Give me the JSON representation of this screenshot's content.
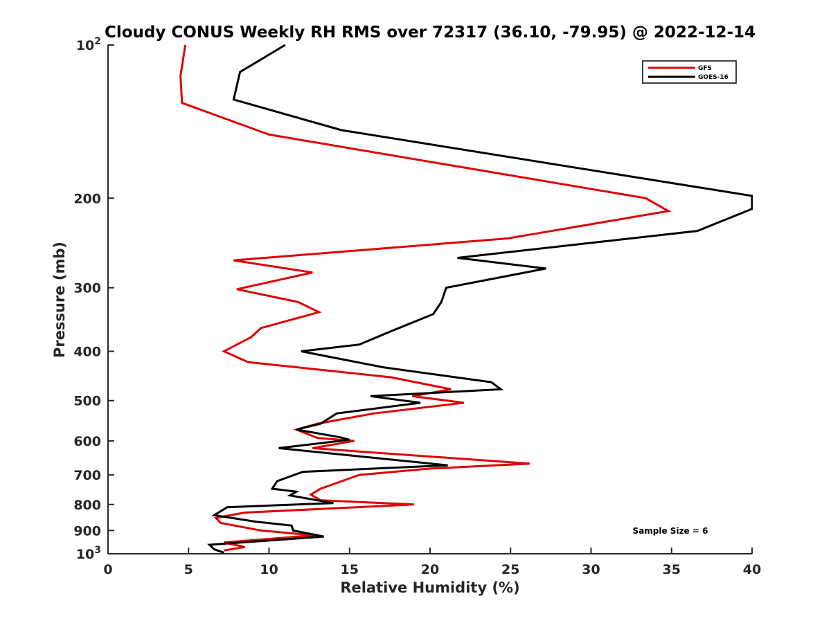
{
  "chart_data": {
    "type": "line",
    "title": "Cloudy CONUS Weekly RH RMS over 72317 (36.10, -79.95) @ 2022-12-14",
    "xlabel": "Relative Humidity (%)",
    "ylabel": "Pressure (mb)",
    "xlim": [
      0,
      40
    ],
    "ylim": [
      100,
      1000
    ],
    "y_scale": "log",
    "y_reversed": true,
    "x_ticks": [
      0,
      5,
      10,
      15,
      20,
      25,
      30,
      35,
      40
    ],
    "y_ticks": [
      {
        "value": 100,
        "label": "10",
        "sup": "2"
      },
      {
        "value": 200,
        "label": "200"
      },
      {
        "value": 300,
        "label": "300"
      },
      {
        "value": 400,
        "label": "400"
      },
      {
        "value": 500,
        "label": "500"
      },
      {
        "value": 600,
        "label": "600"
      },
      {
        "value": 700,
        "label": "700"
      },
      {
        "value": 800,
        "label": "800"
      },
      {
        "value": 900,
        "label": "900"
      },
      {
        "value": 1000,
        "label": "10",
        "sup": "3"
      }
    ],
    "grid": false,
    "legend_position": "top-right",
    "annotation": "Sample Size = 6",
    "series": [
      {
        "name": "GFS",
        "color": "#e00000",
        "points": [
          [
            4.8,
            100
          ],
          [
            4.5,
            115
          ],
          [
            4.6,
            130
          ],
          [
            10.0,
            150
          ],
          [
            33.4,
            200
          ],
          [
            34.8,
            212
          ],
          [
            24.8,
            240
          ],
          [
            7.8,
            265
          ],
          [
            12.7,
            280
          ],
          [
            8.0,
            302
          ],
          [
            11.8,
            320
          ],
          [
            13.1,
            335
          ],
          [
            9.5,
            360
          ],
          [
            8.9,
            375
          ],
          [
            7.2,
            400
          ],
          [
            8.7,
            420
          ],
          [
            17.6,
            450
          ],
          [
            21.3,
            475
          ],
          [
            18.9,
            490
          ],
          [
            22.1,
            505
          ],
          [
            16.5,
            530
          ],
          [
            13.0,
            555
          ],
          [
            11.7,
            570
          ],
          [
            13.0,
            592
          ],
          [
            15.3,
            600
          ],
          [
            12.7,
            620
          ],
          [
            26.2,
            665
          ],
          [
            20.0,
            680
          ],
          [
            15.6,
            700
          ],
          [
            13.2,
            745
          ],
          [
            12.6,
            765
          ],
          [
            13.2,
            785
          ],
          [
            19.0,
            800
          ],
          [
            8.5,
            830
          ],
          [
            6.7,
            850
          ],
          [
            7.0,
            870
          ],
          [
            9.5,
            900
          ],
          [
            12.8,
            920
          ],
          [
            7.2,
            950
          ],
          [
            8.5,
            970
          ],
          [
            7.2,
            985
          ]
        ]
      },
      {
        "name": "GOES-16",
        "color": "#000000",
        "points": [
          [
            11.0,
            100
          ],
          [
            8.2,
            113
          ],
          [
            7.8,
            128
          ],
          [
            14.5,
            147
          ],
          [
            40.0,
            198
          ],
          [
            40.0,
            210
          ],
          [
            36.6,
            232
          ],
          [
            21.7,
            262
          ],
          [
            27.2,
            275
          ],
          [
            21.0,
            300
          ],
          [
            20.7,
            320
          ],
          [
            20.2,
            338
          ],
          [
            17.6,
            365
          ],
          [
            15.6,
            388
          ],
          [
            12.0,
            400
          ],
          [
            17.1,
            430
          ],
          [
            23.8,
            460
          ],
          [
            24.4,
            475
          ],
          [
            16.3,
            490
          ],
          [
            19.4,
            505
          ],
          [
            14.2,
            530
          ],
          [
            13.2,
            555
          ],
          [
            11.7,
            570
          ],
          [
            14.4,
            590
          ],
          [
            15.0,
            597
          ],
          [
            10.6,
            620
          ],
          [
            21.1,
            670
          ],
          [
            12.1,
            690
          ],
          [
            10.5,
            720
          ],
          [
            10.2,
            745
          ],
          [
            11.7,
            755
          ],
          [
            11.3,
            768
          ],
          [
            14.0,
            795
          ],
          [
            7.4,
            810
          ],
          [
            6.6,
            840
          ],
          [
            9.2,
            865
          ],
          [
            11.4,
            880
          ],
          [
            11.5,
            900
          ],
          [
            13.4,
            925
          ],
          [
            6.3,
            960
          ],
          [
            6.6,
            980
          ],
          [
            7.2,
            995
          ]
        ]
      }
    ]
  }
}
